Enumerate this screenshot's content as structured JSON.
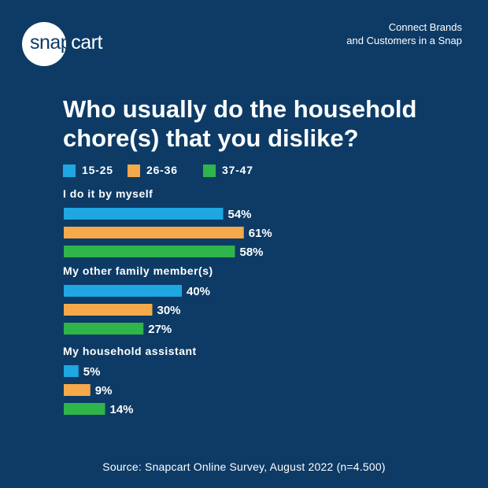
{
  "brand": {
    "logo_snap": "snap",
    "logo_cart": "cart",
    "tagline_line1": "Connect Brands",
    "tagline_line2": "and Customers in a Snap"
  },
  "title_line1": "Who usually do the household",
  "title_line2": "chore(s) that you dislike?",
  "source": "Source: Snapcart Online Survey, August 2022 (n=4.500)",
  "colors": {
    "background": "#0d3b66",
    "series_15_25": "#1ea7e1",
    "series_26_36": "#f5a94a",
    "series_37_47": "#2fb54a"
  },
  "chart_data": {
    "type": "bar",
    "orientation": "horizontal",
    "title": "Who usually do the household chore(s) that you dislike?",
    "categories": [
      "I do it by myself",
      "My other family member(s)",
      "My household assistant"
    ],
    "series": [
      {
        "name": "15-25",
        "values": [
          54,
          40,
          5
        ],
        "color": "#1ea7e1"
      },
      {
        "name": "26-36",
        "values": [
          61,
          30,
          9
        ],
        "color": "#f5a94a"
      },
      {
        "name": "37-47",
        "values": [
          58,
          27,
          14
        ],
        "color": "#2fb54a"
      }
    ],
    "value_suffix": "%",
    "legend_position": "top-left",
    "grid": false
  }
}
